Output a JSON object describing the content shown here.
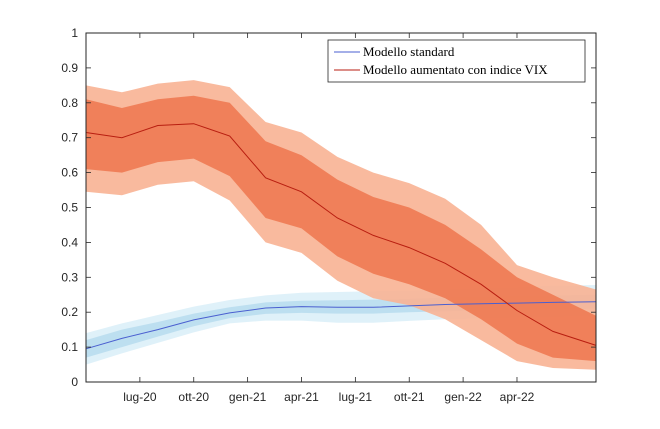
{
  "chart_data": {
    "type": "line",
    "title": "",
    "xlabel": "",
    "ylabel": "",
    "ylim": [
      0,
      1
    ],
    "xlim": [
      0,
      28.4
    ],
    "yticks": [
      0,
      0.1,
      0.2,
      0.3,
      0.4,
      0.5,
      0.6,
      0.7,
      0.8,
      0.9,
      1
    ],
    "ytick_labels": [
      "0",
      "0.1",
      "0.2",
      "0.3",
      "0.4",
      "0.5",
      "0.6",
      "0.7",
      "0.8",
      "0.9",
      "1"
    ],
    "xticks": [
      {
        "label": "lug-20",
        "x": 3
      },
      {
        "label": "ott-20",
        "x": 6
      },
      {
        "label": "gen-21",
        "x": 9
      },
      {
        "label": "apr-21",
        "x": 12
      },
      {
        "label": "lug-21",
        "x": 15
      },
      {
        "label": "ott-21",
        "x": 18
      },
      {
        "label": "gen-22",
        "x": 21
      },
      {
        "label": "apr-22",
        "x": 24
      }
    ],
    "grid": false,
    "legend_position": "top-right",
    "series": [
      {
        "name": "Modello standard",
        "color": "#4a5fd0",
        "band_inner_color": "#b7dcef",
        "band_outer_color": "#d9eef8",
        "x": [
          0,
          2,
          4,
          6,
          8,
          10,
          12,
          14,
          16,
          18,
          20,
          22,
          24,
          26,
          28.4
        ],
        "values": [
          0.095,
          0.125,
          0.15,
          0.178,
          0.198,
          0.212,
          0.216,
          0.214,
          0.214,
          0.218,
          0.222,
          0.224,
          0.226,
          0.228,
          0.23
        ],
        "inner_low": [
          0.07,
          0.1,
          0.13,
          0.16,
          0.183,
          0.195,
          0.198,
          0.196,
          0.196,
          0.2,
          0.203,
          0.205,
          0.207,
          0.208,
          0.21
        ],
        "inner_high": [
          0.12,
          0.15,
          0.172,
          0.196,
          0.214,
          0.228,
          0.233,
          0.234,
          0.236,
          0.238,
          0.242,
          0.244,
          0.246,
          0.248,
          0.25
        ],
        "outer_low": [
          0.05,
          0.082,
          0.112,
          0.142,
          0.168,
          0.176,
          0.176,
          0.17,
          0.17,
          0.175,
          0.18,
          0.182,
          0.184,
          0.186,
          0.188
        ],
        "outer_high": [
          0.14,
          0.168,
          0.192,
          0.216,
          0.235,
          0.248,
          0.256,
          0.258,
          0.26,
          0.262,
          0.266,
          0.27,
          0.272,
          0.276,
          0.278
        ]
      },
      {
        "name": "Modello aumentato con indice VIX",
        "color": "#b81e10",
        "band_inner_color": "#ee7a52",
        "band_outer_color": "#f8b294",
        "x": [
          0,
          2,
          4,
          6,
          8,
          10,
          12,
          14,
          16,
          18,
          20,
          22,
          24,
          26,
          28.4
        ],
        "values": [
          0.715,
          0.7,
          0.735,
          0.74,
          0.705,
          0.585,
          0.545,
          0.47,
          0.42,
          0.385,
          0.34,
          0.28,
          0.205,
          0.145,
          0.105
        ],
        "inner_low": [
          0.61,
          0.6,
          0.63,
          0.64,
          0.59,
          0.47,
          0.44,
          0.36,
          0.31,
          0.28,
          0.24,
          0.18,
          0.11,
          0.07,
          0.06
        ],
        "inner_high": [
          0.81,
          0.785,
          0.81,
          0.82,
          0.8,
          0.69,
          0.65,
          0.58,
          0.53,
          0.5,
          0.45,
          0.38,
          0.3,
          0.25,
          0.19
        ],
        "outer_low": [
          0.545,
          0.535,
          0.565,
          0.575,
          0.52,
          0.4,
          0.37,
          0.29,
          0.24,
          0.22,
          0.18,
          0.12,
          0.06,
          0.04,
          0.035
        ],
        "outer_high": [
          0.85,
          0.83,
          0.855,
          0.865,
          0.845,
          0.745,
          0.715,
          0.645,
          0.6,
          0.57,
          0.525,
          0.45,
          0.335,
          0.3,
          0.265
        ]
      }
    ]
  }
}
